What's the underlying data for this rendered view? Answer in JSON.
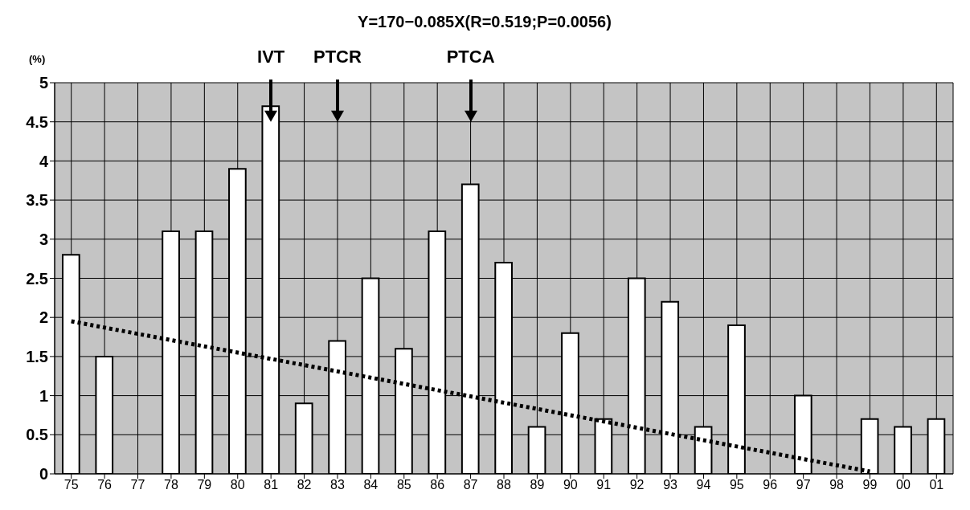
{
  "chart_data": {
    "type": "bar",
    "title": "Y=170−0.085X(R=0.519;P=0.0056)",
    "ylabel": "(%)",
    "categories": [
      "75",
      "76",
      "77",
      "78",
      "79",
      "80",
      "81",
      "82",
      "83",
      "84",
      "85",
      "86",
      "87",
      "88",
      "89",
      "90",
      "91",
      "92",
      "93",
      "94",
      "95",
      "96",
      "97",
      "98",
      "99",
      "00",
      "01"
    ],
    "series": [
      {
        "color": "#ffffff",
        "values": [
          2.8,
          1.5,
          0,
          3.1,
          3.1,
          3.9,
          4.7,
          0.9,
          1.7,
          2.5,
          1.6,
          3.1,
          3.7,
          2.7,
          0.6,
          1.8,
          0.7,
          2.5,
          2.2,
          0.6,
          1.9,
          0,
          1.0,
          0,
          0.7,
          0.6,
          0.7
        ]
      },
      {
        "type": "line",
        "color": "#000000",
        "line_style": "dotted",
        "marker": "none",
        "values": [
          1.95,
          1.87,
          1.79,
          1.71,
          1.63,
          1.55,
          1.47,
          1.39,
          1.31,
          1.23,
          1.15,
          1.07,
          0.99,
          0.91,
          0.83,
          0.75,
          0.67,
          0.59,
          0.51,
          0.43,
          0.35,
          0.27,
          0.19,
          0.11,
          0.03,
          null,
          null
        ]
      }
    ],
    "annotations": [
      {
        "text": "IVT",
        "x": "81"
      },
      {
        "text": "PTCR",
        "x": "83"
      },
      {
        "text": "PTCA",
        "x": "87"
      }
    ],
    "ylim": [
      0,
      5
    ],
    "yticks": [
      0,
      0.5,
      1,
      1.5,
      2,
      2.5,
      3,
      3.5,
      4,
      4.5,
      5
    ],
    "grid": true
  }
}
